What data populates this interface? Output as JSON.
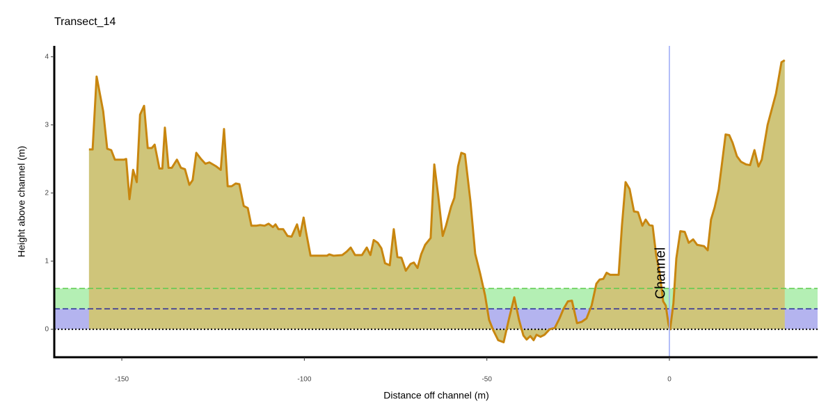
{
  "chart_data": {
    "type": "area",
    "title": "Transect_14",
    "x_label": "Distance off channel (m)",
    "y_label": "Height above channel (m)",
    "line_color": "#c8860f",
    "fill_color": "#cfc57a",
    "x": [
      -159,
      -158,
      -156.9,
      -155.1,
      -154,
      -152.9,
      -151.9,
      -149.4,
      -148.8,
      -147.9,
      -146.9,
      -145.9,
      -145,
      -143.9,
      -142.9,
      -141.8,
      -141,
      -139.7,
      -138.9,
      -138.2,
      -137.2,
      -136.3,
      -134.9,
      -133.8,
      -132.7,
      -131.5,
      -130.6,
      -129.6,
      -128.3,
      -127.1,
      -126,
      -124.1,
      -122.9,
      -122,
      -121,
      -119.9,
      -118.8,
      -117.8,
      -116.6,
      -115.5,
      -114.5,
      -113.2,
      -112.1,
      -110.9,
      -109.8,
      -108.6,
      -107.9,
      -107.1,
      -105.8,
      -104.6,
      -103.5,
      -102,
      -101.2,
      -100.2,
      -99.5,
      -98.3,
      -93.8,
      -93.2,
      -92,
      -89.6,
      -88.4,
      -87.3,
      -86.1,
      -84.2,
      -82.9,
      -81.9,
      -81,
      -79.9,
      -78.9,
      -77.9,
      -76.6,
      -75.5,
      -74.5,
      -73.4,
      -72.2,
      -70.9,
      -70,
      -69,
      -68,
      -66.9,
      -65.4,
      -64.4,
      -63.3,
      -62.1,
      -61.2,
      -59.8,
      -58.9,
      -57.9,
      -57,
      -56,
      -54.5,
      -53.2,
      -51.8,
      -50.5,
      -49.4,
      -48.2,
      -46.9,
      -45.4,
      -44,
      -42.5,
      -41.2,
      -40,
      -39.1,
      -38.1,
      -37.2,
      -36.4,
      -35.3,
      -34.2,
      -32.8,
      -31.4,
      -30.1,
      -29,
      -27.8,
      -26.7,
      -25.3,
      -24,
      -22.7,
      -21.3,
      -20,
      -19.1,
      -18.1,
      -17.2,
      -16.2,
      -13.9,
      -13,
      -12,
      -10.9,
      -9.7,
      -8.6,
      -7.4,
      -6.5,
      -5.5,
      -4.6,
      -3.6,
      -2.7,
      -1.7,
      -1,
      -0.2,
      0.2,
      1.1,
      1.9,
      3,
      4.2,
      5.3,
      6.5,
      7.6,
      9.5,
      10.5,
      11.4,
      12.4,
      13.5,
      14.3,
      15.4,
      16.4,
      17.3,
      18.5,
      19.6,
      21,
      22.1,
      23.3,
      24.4,
      25.3,
      26.9,
      29.2,
      30.7,
      31.6
    ],
    "y": [
      2.64,
      2.64,
      3.71,
      3.2,
      2.65,
      2.63,
      2.49,
      2.49,
      2.5,
      1.91,
      2.34,
      2.16,
      3.15,
      3.28,
      2.66,
      2.66,
      2.71,
      2.36,
      2.36,
      2.96,
      2.37,
      2.37,
      2.49,
      2.37,
      2.35,
      2.12,
      2.19,
      2.59,
      2.5,
      2.43,
      2.45,
      2.39,
      2.34,
      2.94,
      2.1,
      2.1,
      2.14,
      2.13,
      1.81,
      1.78,
      1.52,
      1.52,
      1.53,
      1.52,
      1.55,
      1.5,
      1.54,
      1.47,
      1.47,
      1.37,
      1.36,
      1.54,
      1.37,
      1.64,
      1.42,
      1.08,
      1.08,
      1.1,
      1.08,
      1.09,
      1.14,
      1.2,
      1.09,
      1.09,
      1.2,
      1.09,
      1.31,
      1.27,
      1.19,
      0.97,
      0.94,
      1.47,
      1.06,
      1.05,
      0.86,
      0.96,
      0.98,
      0.9,
      1.1,
      1.24,
      1.34,
      2.42,
      1.95,
      1.37,
      1.52,
      1.8,
      1.93,
      2.39,
      2.59,
      2.57,
      1.88,
      1.11,
      0.81,
      0.5,
      0.14,
      -0.02,
      -0.16,
      -0.19,
      0.14,
      0.47,
      0.14,
      -0.09,
      -0.15,
      -0.1,
      -0.16,
      -0.08,
      -0.11,
      -0.08,
      0,
      0.02,
      0.16,
      0.3,
      0.41,
      0.42,
      0.09,
      0.11,
      0.16,
      0.35,
      0.67,
      0.73,
      0.74,
      0.83,
      0.8,
      0.8,
      1.52,
      2.16,
      2.06,
      1.73,
      1.72,
      1.52,
      1.61,
      1.53,
      1.52,
      1.08,
      0.84,
      0.41,
      0.35,
      0.06,
      0,
      0.38,
      1.04,
      1.44,
      1.43,
      1.27,
      1.32,
      1.24,
      1.22,
      1.16,
      1.61,
      1.79,
      2.05,
      2.39,
      2.86,
      2.85,
      2.74,
      2.54,
      2.46,
      2.42,
      2.41,
      2.63,
      2.39,
      2.49,
      3,
      3.46,
      3.92,
      3.95
    ],
    "bands": [
      {
        "ymin": 0,
        "ymax": 0.3,
        "color": "#b4b4ef"
      },
      {
        "ymin": 0.3,
        "ymax": 0.6,
        "color": "#b4efb4"
      }
    ],
    "hlines": [
      {
        "y": 0.6,
        "color": "#5ccc4c",
        "style": "dashed"
      },
      {
        "y": 0.3,
        "color": "#27279a",
        "style": "dashed"
      },
      {
        "y": 0,
        "color": "#000000",
        "style": "dotted"
      }
    ],
    "vline": {
      "x": 0,
      "label": "Channel",
      "color": "#9aa8f5",
      "label_color": "#3b6fd4"
    },
    "xlim": [
      -168.5,
      40.6
    ],
    "ylim": [
      -0.41,
      4.16
    ],
    "xticks": [
      -150,
      -100,
      -50,
      0
    ],
    "yticks": [
      0,
      1,
      2,
      3,
      4
    ]
  }
}
